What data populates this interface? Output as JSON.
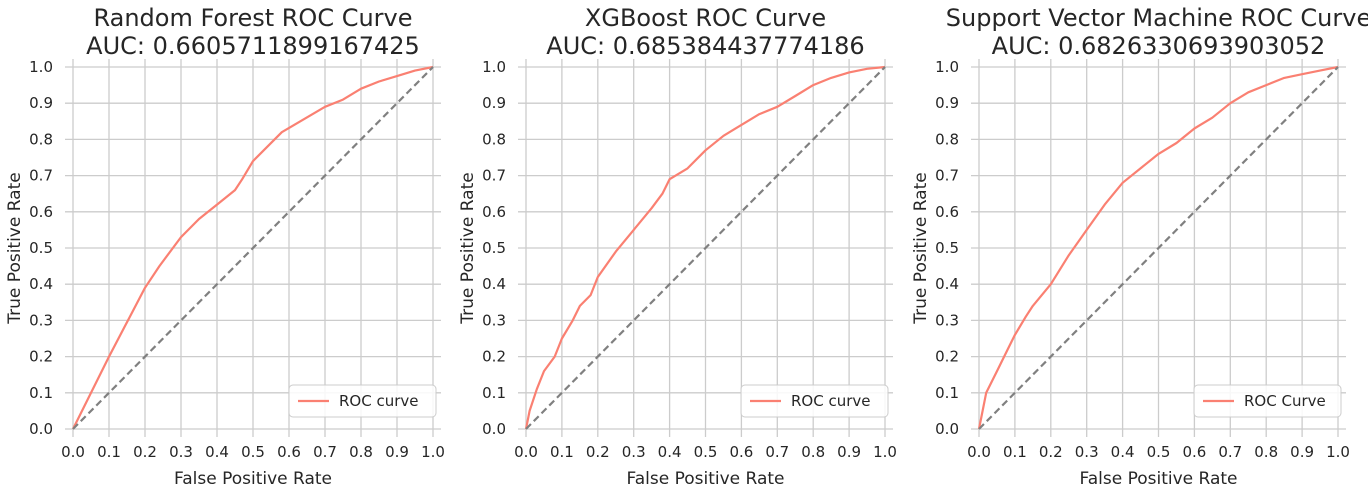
{
  "colors": {
    "roc_line": "#fa8072",
    "diagonal": "#808080",
    "grid": "#cccccc",
    "text": "#262626"
  },
  "chart_data": [
    {
      "type": "line",
      "title": "Random Forest ROC Curve",
      "subtitle": "AUC: 0.6605711899167425",
      "xlabel": "False Positive Rate",
      "ylabel": "True Positive Rate",
      "xlim": [
        0,
        1
      ],
      "ylim": [
        0,
        1
      ],
      "xticks": [
        "0.0",
        "0.1",
        "0.2",
        "0.3",
        "0.4",
        "0.5",
        "0.6",
        "0.7",
        "0.8",
        "0.9",
        "1.0"
      ],
      "yticks": [
        "0.0",
        "0.1",
        "0.2",
        "0.3",
        "0.4",
        "0.5",
        "0.6",
        "0.7",
        "0.8",
        "0.9",
        "1.0"
      ],
      "grid": true,
      "legend": {
        "position": "lower-right",
        "label": "ROC curve"
      },
      "series": [
        {
          "name": "ROC curve",
          "style": "solid",
          "x": [
            0,
            0.1,
            0.2,
            0.24,
            0.3,
            0.35,
            0.4,
            0.45,
            0.47,
            0.5,
            0.58,
            0.7,
            0.75,
            0.8,
            0.85,
            0.9,
            0.95,
            1.0
          ],
          "y": [
            0,
            0.2,
            0.39,
            0.45,
            0.53,
            0.58,
            0.62,
            0.66,
            0.69,
            0.74,
            0.82,
            0.89,
            0.91,
            0.94,
            0.96,
            0.975,
            0.99,
            1.0
          ]
        },
        {
          "name": "",
          "style": "dashed",
          "x": [
            0,
            1
          ],
          "y": [
            0,
            1
          ]
        }
      ]
    },
    {
      "type": "line",
      "title": "XGBoost ROC Curve",
      "subtitle": "AUC: 0.685384437774186",
      "xlabel": "False Positive Rate",
      "ylabel": "True Positive Rate",
      "xlim": [
        0,
        1
      ],
      "ylim": [
        0,
        1
      ],
      "xticks": [
        "0.0",
        "0.1",
        "0.2",
        "0.3",
        "0.4",
        "0.5",
        "0.6",
        "0.7",
        "0.8",
        "0.9",
        "1.0"
      ],
      "yticks": [
        "0.0",
        "0.1",
        "0.2",
        "0.3",
        "0.4",
        "0.5",
        "0.6",
        "0.7",
        "0.8",
        "0.9",
        "1.0"
      ],
      "grid": true,
      "legend": {
        "position": "lower-right",
        "label": "ROC curve"
      },
      "series": [
        {
          "name": "ROC curve",
          "style": "solid",
          "x": [
            0,
            0.01,
            0.03,
            0.05,
            0.08,
            0.1,
            0.13,
            0.15,
            0.18,
            0.2,
            0.25,
            0.3,
            0.35,
            0.38,
            0.4,
            0.45,
            0.5,
            0.55,
            0.6,
            0.65,
            0.7,
            0.75,
            0.8,
            0.85,
            0.9,
            0.95,
            1.0
          ],
          "y": [
            0,
            0.05,
            0.11,
            0.16,
            0.2,
            0.25,
            0.3,
            0.34,
            0.37,
            0.42,
            0.49,
            0.55,
            0.61,
            0.65,
            0.69,
            0.72,
            0.77,
            0.81,
            0.84,
            0.87,
            0.89,
            0.92,
            0.95,
            0.97,
            0.985,
            0.995,
            1.0
          ]
        },
        {
          "name": "",
          "style": "dashed",
          "x": [
            0,
            1
          ],
          "y": [
            0,
            1
          ]
        }
      ]
    },
    {
      "type": "line",
      "title": "Support Vector Machine ROC Curve",
      "subtitle": "AUC: 0.6826330693903052",
      "xlabel": "False Positive Rate",
      "ylabel": "True Positive Rate",
      "xlim": [
        0,
        1
      ],
      "ylim": [
        0,
        1
      ],
      "xticks": [
        "0.0",
        "0.1",
        "0.2",
        "0.3",
        "0.4",
        "0.5",
        "0.6",
        "0.7",
        "0.8",
        "0.9",
        "1.0"
      ],
      "yticks": [
        "0.0",
        "0.1",
        "0.2",
        "0.3",
        "0.4",
        "0.5",
        "0.6",
        "0.7",
        "0.8",
        "0.9",
        "1.0"
      ],
      "grid": true,
      "legend": {
        "position": "lower-right",
        "label": "ROC Curve"
      },
      "series": [
        {
          "name": "ROC Curve",
          "style": "solid",
          "x": [
            0,
            0.01,
            0.02,
            0.05,
            0.08,
            0.1,
            0.13,
            0.15,
            0.2,
            0.25,
            0.3,
            0.35,
            0.4,
            0.45,
            0.5,
            0.55,
            0.6,
            0.65,
            0.7,
            0.75,
            0.8,
            0.85,
            0.9,
            0.95,
            1.0
          ],
          "y": [
            0,
            0.05,
            0.1,
            0.16,
            0.22,
            0.26,
            0.31,
            0.34,
            0.4,
            0.48,
            0.55,
            0.62,
            0.68,
            0.72,
            0.76,
            0.79,
            0.83,
            0.86,
            0.9,
            0.93,
            0.95,
            0.97,
            0.98,
            0.99,
            1.0
          ]
        },
        {
          "name": "",
          "style": "dashed",
          "x": [
            0,
            1
          ],
          "y": [
            0,
            1
          ]
        }
      ]
    }
  ]
}
